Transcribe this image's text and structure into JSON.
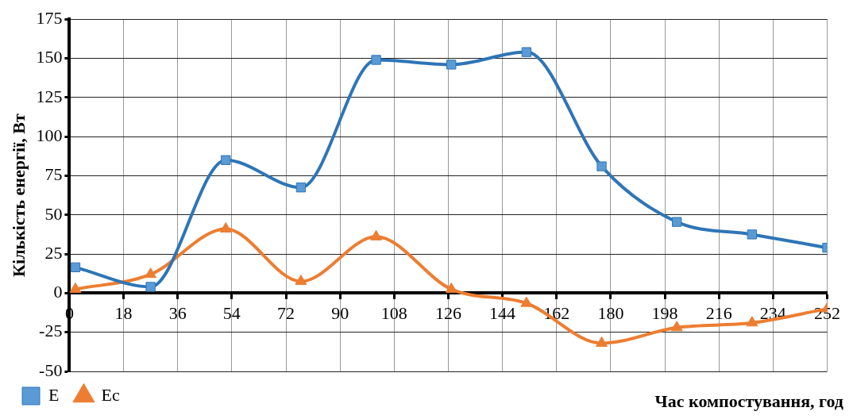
{
  "chart_data": {
    "type": "line",
    "xlabel": "Час компостування, год",
    "ylabel": "Кількість енергії, Вт",
    "x": [
      2,
      27,
      52,
      77,
      102,
      127,
      152,
      177,
      202,
      227,
      252
    ],
    "series": [
      {
        "name": "E",
        "color": "#2e75b6",
        "marker": "square",
        "values": [
          16.5,
          4,
          85,
          67.5,
          149,
          146,
          154,
          81,
          45.5,
          37.5,
          29
        ]
      },
      {
        "name": "Ec",
        "color": "#ed7d31",
        "marker": "triangle",
        "values": [
          2.5,
          12,
          41,
          7.5,
          36,
          2.5,
          -6.5,
          -32,
          -22,
          -19,
          -10
        ]
      }
    ],
    "xlim": [
      0,
      252
    ],
    "xticks": [
      0,
      18,
      36,
      54,
      72,
      90,
      108,
      126,
      144,
      162,
      180,
      198,
      216,
      234,
      252
    ],
    "ylim": [
      -50,
      175
    ],
    "yticks": [
      -50,
      -25,
      0,
      25,
      50,
      75,
      100,
      125,
      150,
      175
    ],
    "grid": true,
    "legend": "bottom left"
  }
}
